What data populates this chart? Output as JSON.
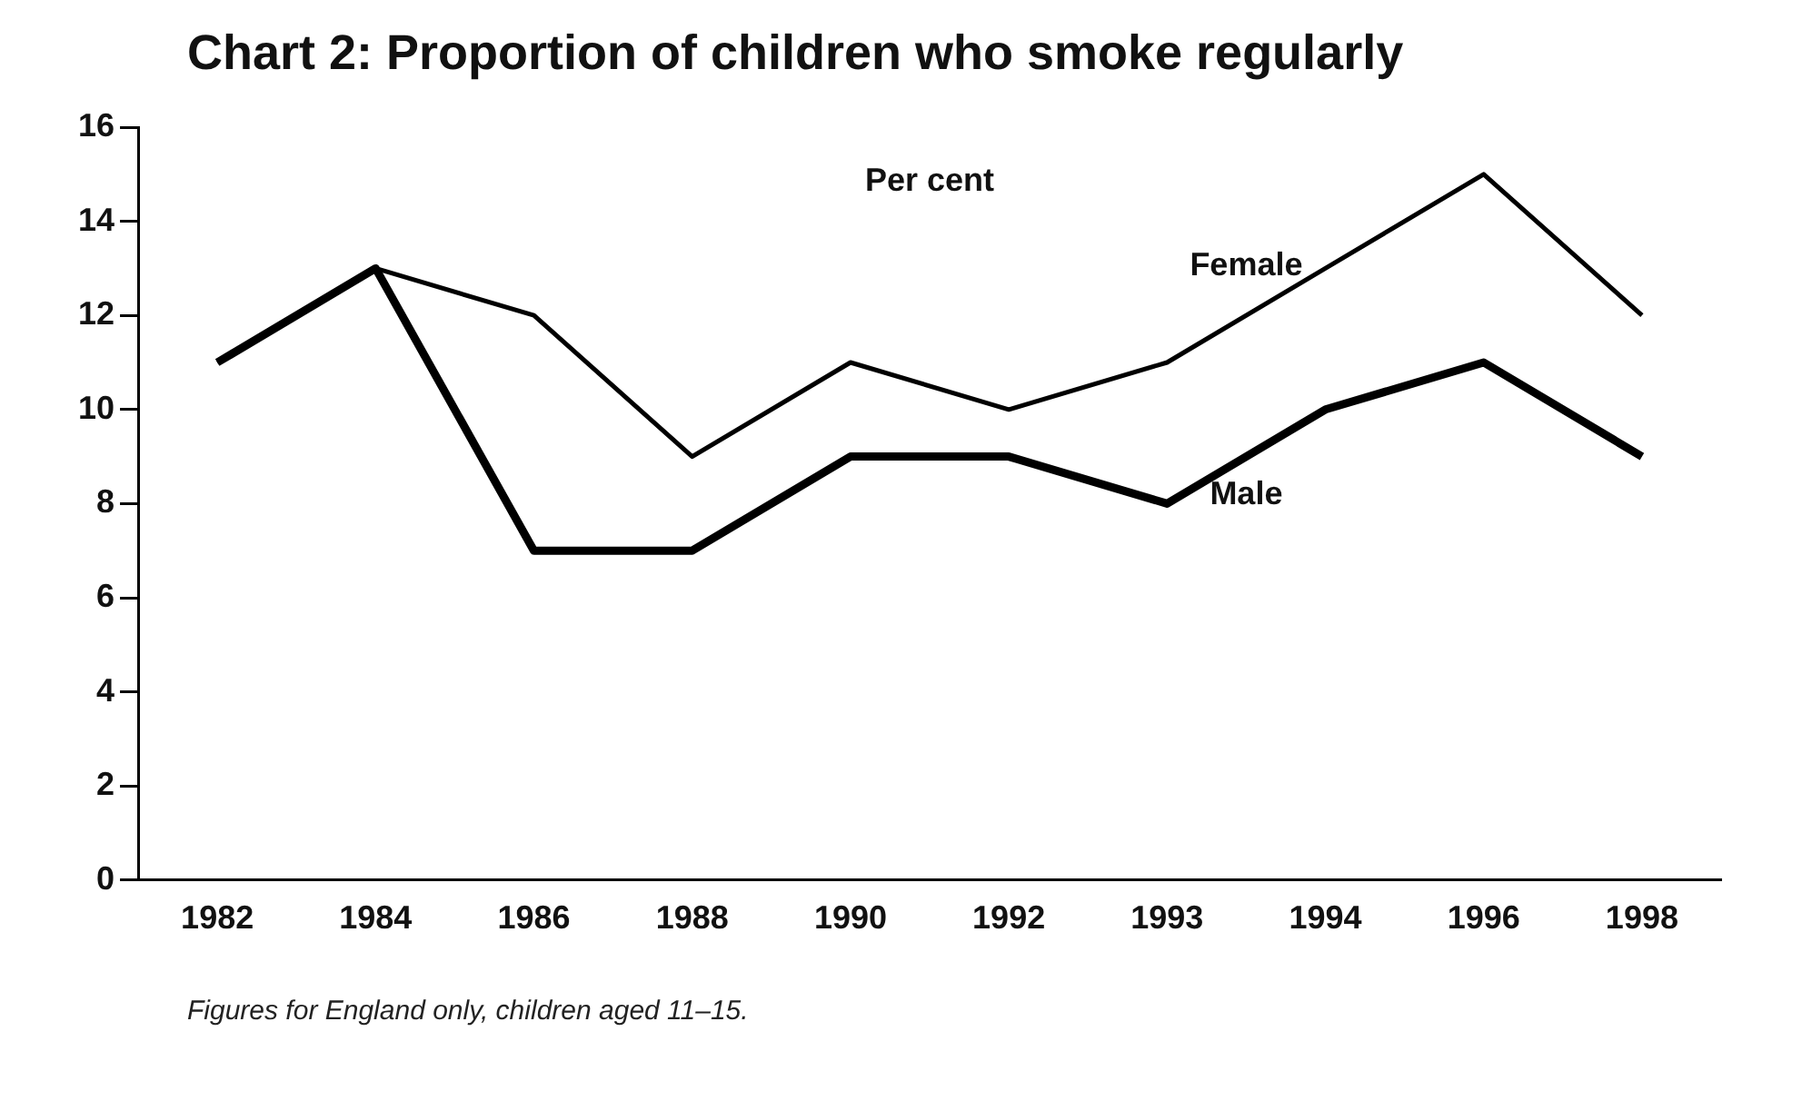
{
  "chart_data": {
    "type": "line",
    "title": "Chart 2: Proportion of children who smoke regularly",
    "ylabel": "Per cent",
    "categories": [
      "1982",
      "1984",
      "1986",
      "1988",
      "1990",
      "1992",
      "1993",
      "1994",
      "1996",
      "1998"
    ],
    "series": [
      {
        "name": "Female",
        "color": "#000000",
        "values": [
          11,
          13,
          12,
          9,
          11,
          10,
          11,
          13,
          15,
          12
        ]
      },
      {
        "name": "Male",
        "color": "#000000",
        "values": [
          11,
          13,
          7,
          7,
          9,
          9,
          8,
          10,
          11,
          9
        ]
      }
    ],
    "ylim": [
      0,
      16
    ],
    "yticks": [
      0,
      2,
      4,
      6,
      8,
      10,
      12,
      14,
      16
    ],
    "grid": false,
    "legend": false,
    "marker": "none",
    "line_style": "solid",
    "annotations": [
      "Figures for England only, children aged 11–15."
    ]
  }
}
